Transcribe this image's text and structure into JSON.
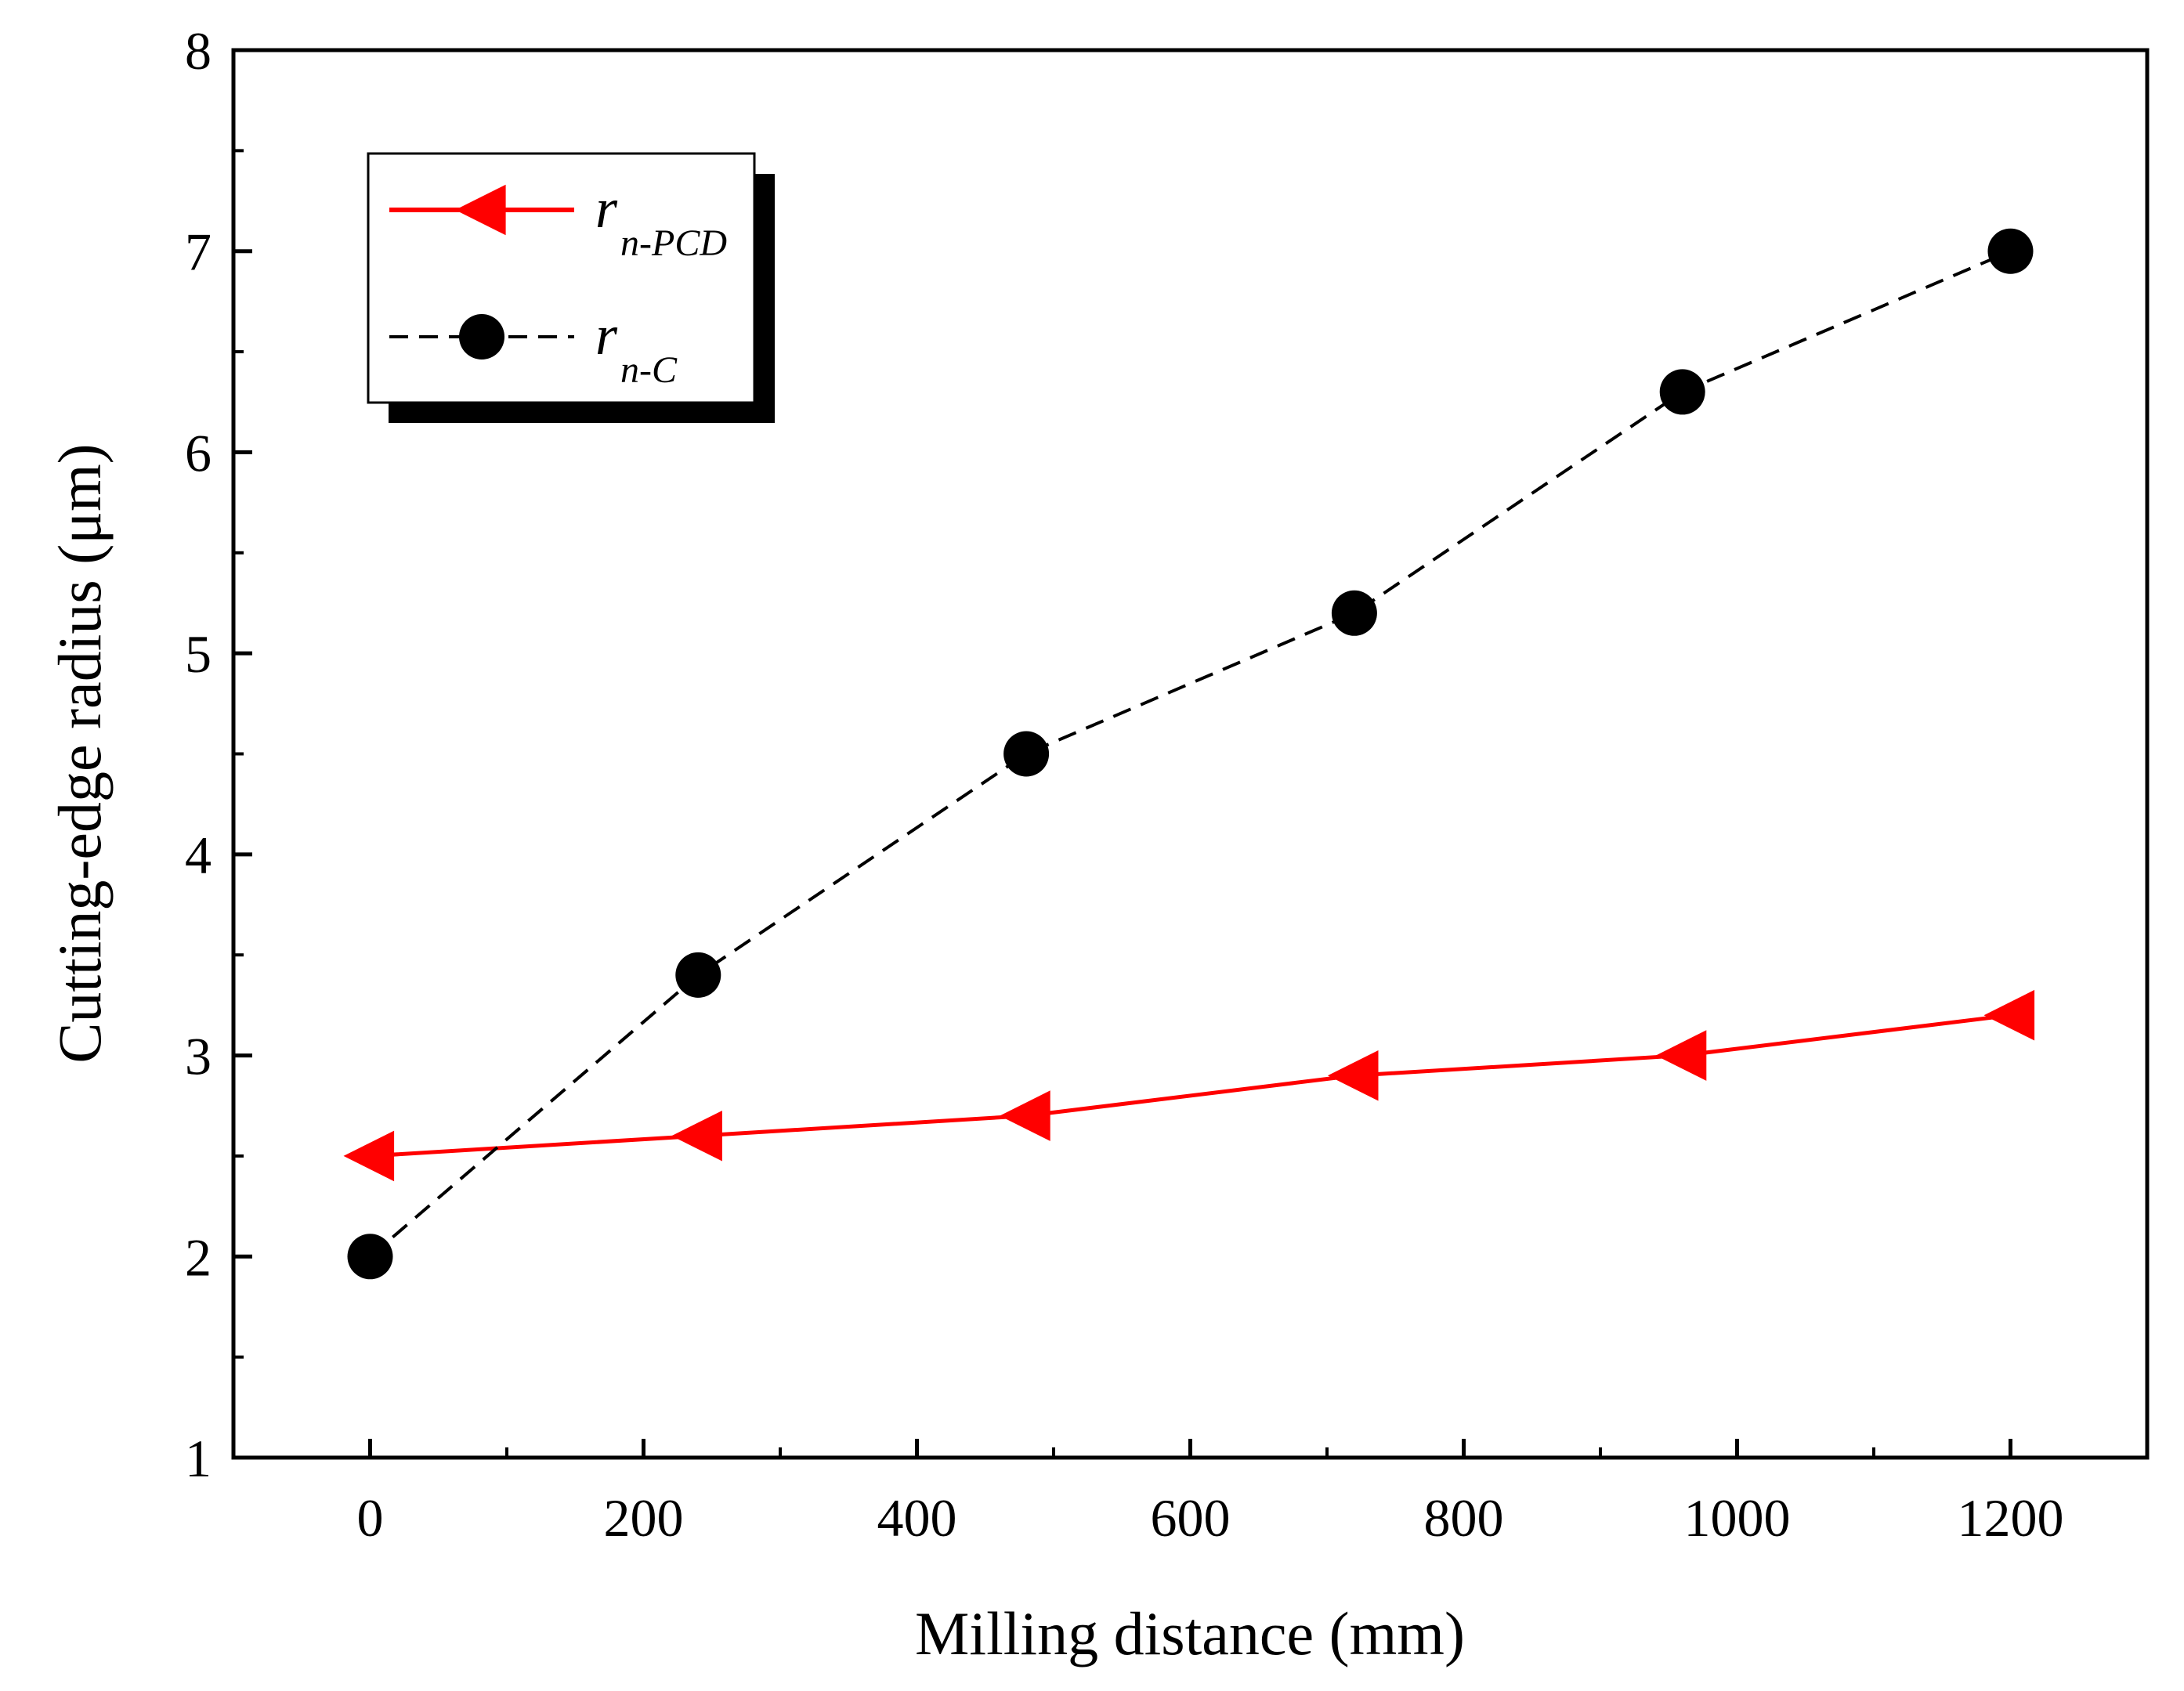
{
  "chart_data": {
    "type": "line",
    "title": "",
    "xlabel": "Milling distance (mm)",
    "ylabel": "Cutting-edge radius (μm)",
    "xlim": [
      -100,
      1300
    ],
    "ylim": [
      1,
      8
    ],
    "x_ticks": [
      0,
      200,
      400,
      600,
      800,
      1000,
      1200
    ],
    "x_tick_labels": [
      "0",
      "200",
      "400",
      "600",
      "800",
      "1000",
      "1200"
    ],
    "y_ticks": [
      1,
      2,
      3,
      4,
      5,
      6,
      7,
      8
    ],
    "y_tick_labels": [
      "1",
      "2",
      "3",
      "4",
      "5",
      "6",
      "7",
      "8"
    ],
    "grid": false,
    "legend_position": "top-left",
    "series": [
      {
        "name": "r_n-PCD",
        "legend_symbol": "r",
        "legend_subscript": "n-PCD",
        "color": "#ff0000",
        "line_style": "solid",
        "marker": "left-triangle",
        "x": [
          0,
          240,
          480,
          720,
          960,
          1200
        ],
        "values": [
          2.5,
          2.6,
          2.7,
          2.9,
          3.0,
          3.2
        ]
      },
      {
        "name": "r_n-C",
        "legend_symbol": "r",
        "legend_subscript": "n-C",
        "color": "#000000",
        "line_style": "dashed",
        "marker": "circle",
        "x": [
          0,
          240,
          480,
          720,
          960,
          1200
        ],
        "values": [
          2.0,
          3.4,
          4.5,
          5.2,
          6.3,
          7.0
        ]
      }
    ]
  }
}
